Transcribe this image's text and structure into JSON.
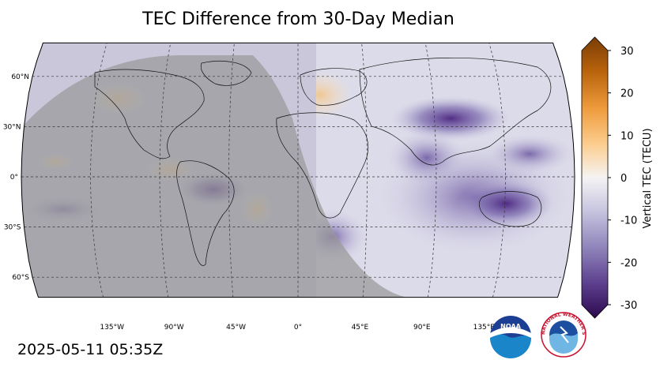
{
  "title": "TEC Difference from 30-Day Median",
  "timestamp": "2025-05-11 05:35Z",
  "map": {
    "projection": "Robinson",
    "lat_labels": [
      "60°N",
      "30°N",
      "0°",
      "30°S",
      "60°S"
    ],
    "lon_labels": [
      "135°W",
      "90°W",
      "45°W",
      "0°",
      "45°E",
      "90°E",
      "135°E"
    ],
    "night_shading": "gray"
  },
  "colorbar": {
    "label": "Vertical TEC (TECU)",
    "ticks": [
      "30",
      "20",
      "10",
      "0",
      "-10",
      "-20",
      "-30"
    ],
    "min": -30,
    "max": 30,
    "colormap": [
      "#3b0f5c",
      "#5a3a8a",
      "#8c7fb8",
      "#c9c7e0",
      "#f2f2f2",
      "#fde0b3",
      "#f6b04f",
      "#d97a16",
      "#8a4a07"
    ]
  },
  "logos": {
    "noaa_text": "NOAA",
    "nws_text": "NATIONAL WEATHER SERVICE"
  }
}
